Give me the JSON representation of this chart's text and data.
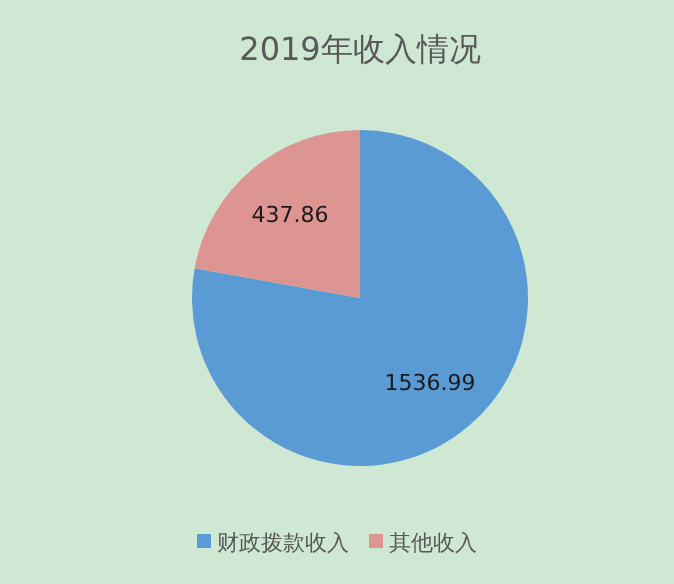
{
  "chart_data": {
    "type": "pie",
    "title": "2019年收入情况",
    "categories": [
      "财政拨款收入",
      "其他收入"
    ],
    "values": [
      1536.99,
      437.86
    ],
    "colors": [
      "#5b9bd5",
      "#dc9590"
    ],
    "data_labels": true,
    "legend": "bottom"
  }
}
